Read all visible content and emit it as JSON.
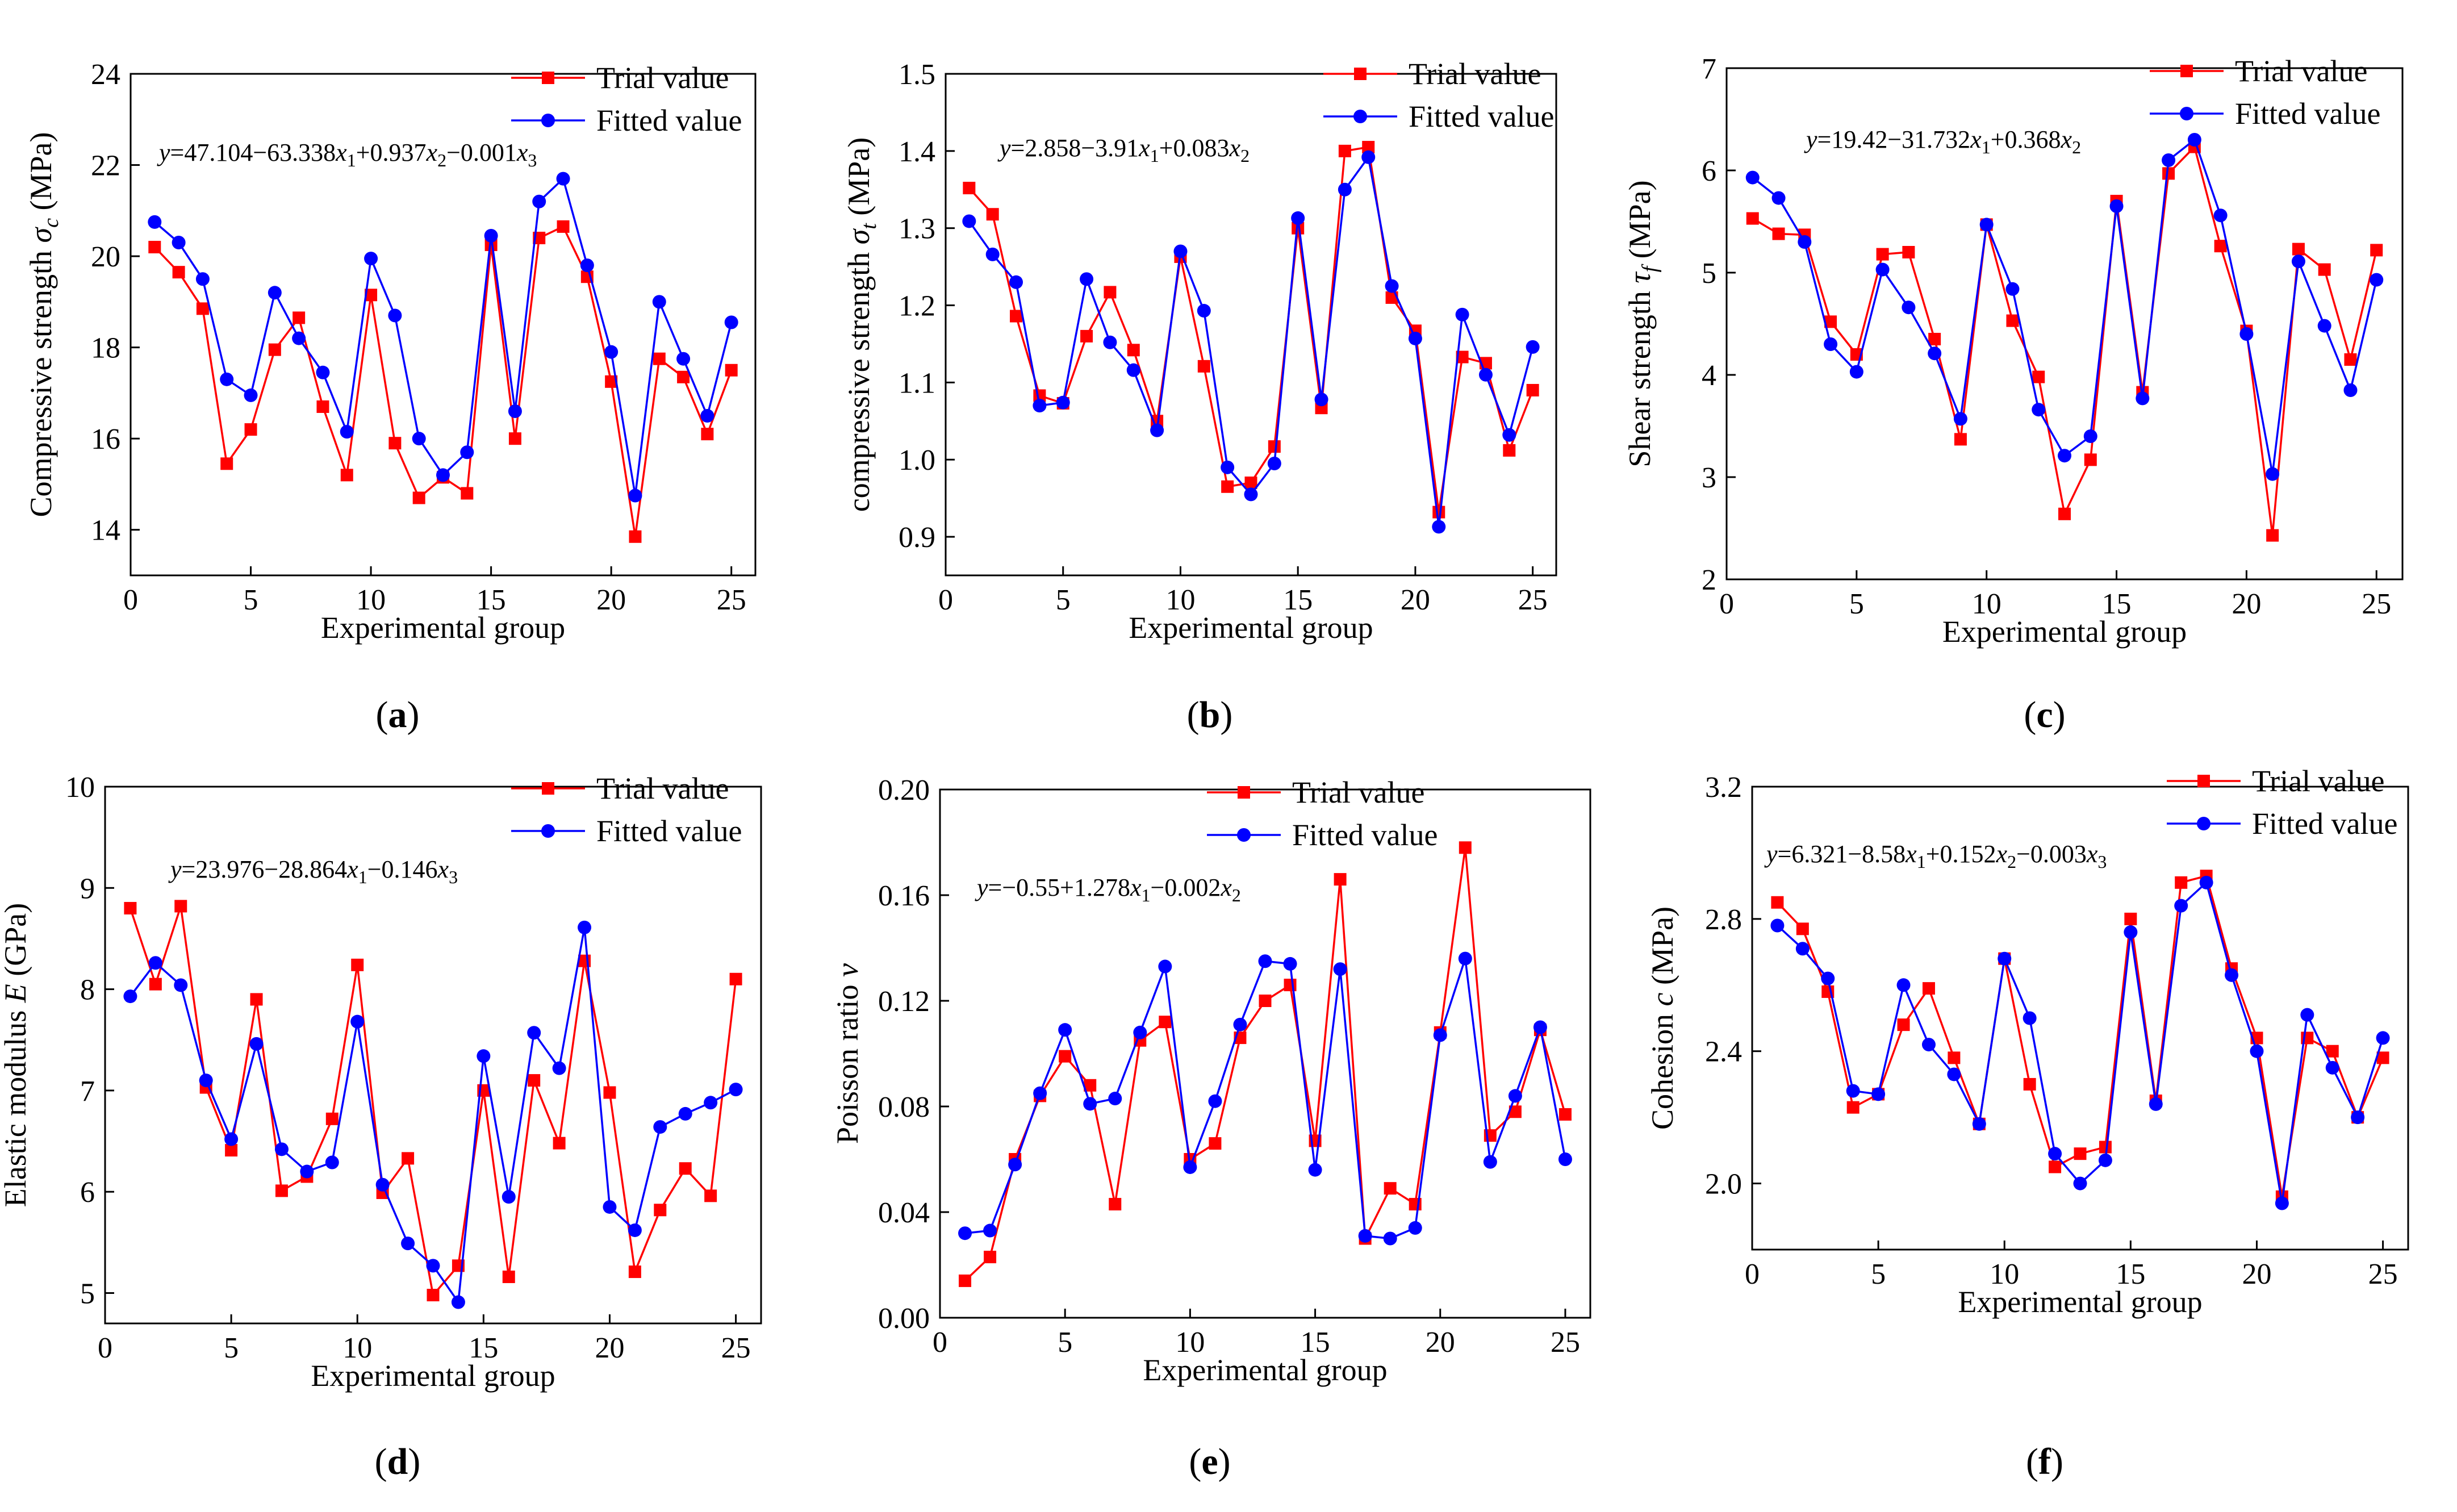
{
  "legend_labels": {
    "trial": "Trial value",
    "fitted": "Fitted value"
  },
  "colors": {
    "trial": "#ff0000",
    "fitted": "#0000ff"
  },
  "chart_data": [
    {
      "type": "line",
      "panel_label": "(a)",
      "ylabel": "Compressive strength σc (MPa)",
      "ylabel_parts": {
        "base": "Compressive strength ",
        "sym": "σ",
        "sub": "c",
        "tail": " (MPa)"
      },
      "xlabel": "Experimental group",
      "equation": "y=47.104−63.338x1+0.937x2−0.001x3",
      "equation_parts": [
        {
          "t": "y",
          "i": true
        },
        {
          "t": "=47.104−63.338"
        },
        {
          "t": "x",
          "i": true
        },
        {
          "t": "1",
          "sub": true
        },
        {
          "t": "+0.937"
        },
        {
          "t": "x",
          "i": true
        },
        {
          "t": "2",
          "sub": true
        },
        {
          "t": "−0.001"
        },
        {
          "t": "x",
          "i": true
        },
        {
          "t": "3",
          "sub": true
        }
      ],
      "xlim": [
        0,
        26
      ],
      "ylim": [
        13,
        24
      ],
      "xticks": [
        0,
        5,
        10,
        15,
        20,
        25
      ],
      "yticks": [
        14,
        16,
        18,
        20,
        22,
        24
      ],
      "ytick_decimals": 0,
      "x": [
        1,
        2,
        3,
        4,
        5,
        6,
        7,
        8,
        9,
        10,
        11,
        12,
        13,
        14,
        15,
        16,
        17,
        18,
        19,
        20,
        21,
        22,
        23,
        24,
        25
      ],
      "legend_position": "top-right",
      "series": [
        {
          "name": "Trial value",
          "values": [
            20.2,
            19.65,
            18.85,
            15.45,
            16.2,
            17.95,
            18.65,
            16.7,
            15.2,
            19.15,
            15.9,
            14.7,
            15.15,
            14.8,
            20.25,
            16.0,
            20.4,
            20.65,
            19.55,
            17.25,
            13.85,
            17.75,
            17.35,
            16.1,
            17.5
          ]
        },
        {
          "name": "Fitted value",
          "values": [
            20.75,
            20.3,
            19.5,
            17.3,
            16.95,
            19.2,
            18.2,
            17.45,
            16.15,
            19.95,
            18.7,
            16.0,
            15.2,
            15.7,
            20.45,
            16.6,
            21.2,
            21.7,
            19.8,
            17.9,
            14.75,
            19.0,
            17.75,
            16.5,
            18.55
          ]
        }
      ]
    },
    {
      "type": "line",
      "panel_label": "(b)",
      "ylabel": "compressive strength σt (MPa)",
      "ylabel_parts": {
        "base": "compressive strength ",
        "sym": "σ",
        "sub": "t",
        "tail": " (MPa)"
      },
      "xlabel": "Experimental group",
      "equation": "y=2.858−3.91x1+0.083x2",
      "equation_parts": [
        {
          "t": "y",
          "i": true
        },
        {
          "t": "=2.858−3.91"
        },
        {
          "t": "x",
          "i": true
        },
        {
          "t": "1",
          "sub": true
        },
        {
          "t": "+0.083"
        },
        {
          "t": "x",
          "i": true
        },
        {
          "t": "2",
          "sub": true
        }
      ],
      "xlim": [
        0,
        26
      ],
      "ylim": [
        0.85,
        1.5
      ],
      "xticks": [
        0,
        5,
        10,
        15,
        20,
        25
      ],
      "yticks": [
        0.9,
        1.0,
        1.1,
        1.2,
        1.3,
        1.4,
        1.5
      ],
      "ytick_decimals": 1,
      "x": [
        1,
        2,
        3,
        4,
        5,
        6,
        7,
        8,
        9,
        10,
        11,
        12,
        13,
        14,
        15,
        16,
        17,
        18,
        19,
        20,
        21,
        22,
        23,
        24,
        25
      ],
      "legend_position": "top-right",
      "series": [
        {
          "name": "Trial value",
          "values": [
            1.352,
            1.318,
            1.186,
            1.083,
            1.073,
            1.16,
            1.217,
            1.142,
            1.05,
            1.263,
            1.121,
            0.965,
            0.97,
            1.017,
            1.3,
            1.067,
            1.4,
            1.405,
            1.21,
            1.167,
            0.932,
            1.133,
            1.125,
            1.012,
            1.09
          ]
        },
        {
          "name": "Fitted value",
          "values": [
            1.309,
            1.266,
            1.23,
            1.07,
            1.074,
            1.234,
            1.152,
            1.116,
            1.038,
            1.27,
            1.193,
            0.99,
            0.955,
            0.995,
            1.313,
            1.078,
            1.35,
            1.392,
            1.225,
            1.157,
            0.913,
            1.188,
            1.11,
            1.032,
            1.146
          ]
        }
      ]
    },
    {
      "type": "line",
      "panel_label": "(c)",
      "ylabel": "Shear strength τf (MPa)",
      "ylabel_parts": {
        "base": "Shear strength ",
        "sym": "τ",
        "sub": "f",
        "tail": " (MPa)"
      },
      "xlabel": "Experimental group",
      "equation": "y=19.42−31.732x1+0.368x2",
      "equation_parts": [
        {
          "t": "y",
          "i": true
        },
        {
          "t": "=19.42−31.732"
        },
        {
          "t": "x",
          "i": true
        },
        {
          "t": "1",
          "sub": true
        },
        {
          "t": "+0.368"
        },
        {
          "t": "x",
          "i": true
        },
        {
          "t": "2",
          "sub": true
        }
      ],
      "xlim": [
        0,
        26
      ],
      "ylim": [
        2,
        7
      ],
      "xticks": [
        0,
        5,
        10,
        15,
        20,
        25
      ],
      "yticks": [
        2,
        3,
        4,
        5,
        6,
        7
      ],
      "ytick_decimals": 0,
      "x": [
        1,
        2,
        3,
        4,
        5,
        6,
        7,
        8,
        9,
        10,
        11,
        12,
        13,
        14,
        15,
        16,
        17,
        18,
        19,
        20,
        21,
        22,
        23,
        24,
        25
      ],
      "legend_position": "top-right",
      "series": [
        {
          "name": "Trial value",
          "values": [
            5.53,
            5.38,
            5.37,
            4.52,
            4.2,
            5.18,
            5.2,
            4.35,
            3.37,
            5.47,
            4.53,
            3.98,
            2.64,
            3.17,
            5.7,
            3.83,
            5.97,
            6.23,
            5.26,
            4.43,
            2.43,
            5.23,
            5.03,
            4.15,
            5.22
          ]
        },
        {
          "name": "Fitted value",
          "values": [
            5.93,
            5.73,
            5.3,
            4.3,
            4.03,
            5.03,
            4.66,
            4.21,
            3.57,
            5.47,
            4.84,
            3.66,
            3.21,
            3.4,
            5.65,
            3.77,
            6.1,
            6.3,
            5.56,
            4.4,
            3.03,
            5.11,
            4.48,
            3.85,
            4.93
          ]
        }
      ]
    },
    {
      "type": "line",
      "panel_label": "(d)",
      "ylabel": "Elastic modulus E (GPa)",
      "ylabel_parts": {
        "base": "Elastic modulus ",
        "sym": "E",
        "sub": "",
        "tail": " (GPa)"
      },
      "xlabel": "Experimental group",
      "equation": "y=23.976−28.864x1−0.146x3",
      "equation_parts": [
        {
          "t": "y",
          "i": true
        },
        {
          "t": "=23.976−28.864"
        },
        {
          "t": "x",
          "i": true
        },
        {
          "t": "1",
          "sub": true
        },
        {
          "t": "−0.146"
        },
        {
          "t": "x",
          "i": true
        },
        {
          "t": "3",
          "sub": true
        }
      ],
      "xlim": [
        0,
        26
      ],
      "ylim": [
        4.7,
        10
      ],
      "xticks": [
        0,
        5,
        10,
        15,
        20,
        25
      ],
      "yticks": [
        5,
        6,
        7,
        8,
        9,
        10
      ],
      "ytick_decimals": 0,
      "x": [
        1,
        2,
        3,
        4,
        5,
        6,
        7,
        8,
        9,
        10,
        11,
        12,
        13,
        14,
        15,
        16,
        17,
        18,
        19,
        20,
        21,
        22,
        23,
        24,
        25
      ],
      "legend_position": "top-right",
      "series": [
        {
          "name": "Trial value",
          "values": [
            8.8,
            8.05,
            8.82,
            7.03,
            6.41,
            7.9,
            6.01,
            6.15,
            6.72,
            8.24,
            5.99,
            6.33,
            4.98,
            5.27,
            7.0,
            5.16,
            7.1,
            6.48,
            8.28,
            6.98,
            5.21,
            5.82,
            6.23,
            5.96,
            8.1
          ]
        },
        {
          "name": "Fitted value",
          "values": [
            7.93,
            8.26,
            8.04,
            7.1,
            6.52,
            7.46,
            6.42,
            6.2,
            6.29,
            7.68,
            6.07,
            5.49,
            5.27,
            4.91,
            7.34,
            5.95,
            7.57,
            7.22,
            8.61,
            5.85,
            5.62,
            6.64,
            6.77,
            6.88,
            7.01
          ]
        }
      ]
    },
    {
      "type": "line",
      "panel_label": "(e)",
      "ylabel": "Poisson ratio ν",
      "ylabel_parts": {
        "base": "Poisson ratio ",
        "sym": "ν",
        "sub": "",
        "tail": ""
      },
      "xlabel": "Experimental group",
      "equation": "y=−0.55+1.278x1−0.002x2",
      "equation_parts": [
        {
          "t": "y",
          "i": true
        },
        {
          "t": "=−0.55+1.278"
        },
        {
          "t": "x",
          "i": true
        },
        {
          "t": "1",
          "sub": true
        },
        {
          "t": "−0.002"
        },
        {
          "t": "x",
          "i": true
        },
        {
          "t": "2",
          "sub": true
        }
      ],
      "xlim": [
        0,
        26
      ],
      "ylim": [
        0.0,
        0.2
      ],
      "xticks": [
        0,
        5,
        10,
        15,
        20,
        25
      ],
      "yticks": [
        0.0,
        0.04,
        0.08,
        0.12,
        0.16,
        0.2
      ],
      "ytick_decimals": 2,
      "x": [
        1,
        2,
        3,
        4,
        5,
        6,
        7,
        8,
        9,
        10,
        11,
        12,
        13,
        14,
        15,
        16,
        17,
        18,
        19,
        20,
        21,
        22,
        23,
        24,
        25
      ],
      "legend_position": "top-right",
      "series": [
        {
          "name": "Trial value",
          "values": [
            0.014,
            0.023,
            0.06,
            0.084,
            0.099,
            0.088,
            0.043,
            0.105,
            0.112,
            0.06,
            0.066,
            0.106,
            0.12,
            0.126,
            0.067,
            0.166,
            0.03,
            0.049,
            0.043,
            0.108,
            0.178,
            0.069,
            0.078,
            0.109,
            0.077
          ]
        },
        {
          "name": "Fitted value",
          "values": [
            0.032,
            0.033,
            0.058,
            0.085,
            0.109,
            0.081,
            0.083,
            0.108,
            0.133,
            0.057,
            0.082,
            0.111,
            0.135,
            0.134,
            0.056,
            0.132,
            0.031,
            0.03,
            0.034,
            0.107,
            0.136,
            0.059,
            0.084,
            0.11,
            0.06
          ]
        }
      ]
    },
    {
      "type": "line",
      "panel_label": "(f)",
      "ylabel": "Cohesion c (MPa)",
      "ylabel_parts": {
        "base": "Cohesion ",
        "sym": "c",
        "sub": "",
        "tail": " (MPa)"
      },
      "xlabel": "Experimental group",
      "equation": "y=6.321−8.58x1+0.152x2−0.003x3",
      "equation_parts": [
        {
          "t": "y",
          "i": true
        },
        {
          "t": "=6.321−8.58"
        },
        {
          "t": "x",
          "i": true
        },
        {
          "t": "1",
          "sub": true
        },
        {
          "t": "+0.152"
        },
        {
          "t": "x",
          "i": true
        },
        {
          "t": "2",
          "sub": true
        },
        {
          "t": "−0.003"
        },
        {
          "t": "x",
          "i": true
        },
        {
          "t": "3",
          "sub": true
        }
      ],
      "xlim": [
        0,
        26
      ],
      "ylim": [
        1.8,
        3.2
      ],
      "xticks": [
        0,
        5,
        10,
        15,
        20,
        25
      ],
      "yticks": [
        2.0,
        2.4,
        2.8,
        3.2
      ],
      "ytick_decimals": 1,
      "x": [
        1,
        2,
        3,
        4,
        5,
        6,
        7,
        8,
        9,
        10,
        11,
        12,
        13,
        14,
        15,
        16,
        17,
        18,
        19,
        20,
        21,
        22,
        23,
        24,
        25
      ],
      "legend_position": "top-right",
      "series": [
        {
          "name": "Trial value",
          "values": [
            2.85,
            2.77,
            2.58,
            2.23,
            2.27,
            2.48,
            2.59,
            2.38,
            2.18,
            2.68,
            2.3,
            2.05,
            2.09,
            2.11,
            2.8,
            2.25,
            2.91,
            2.93,
            2.65,
            2.44,
            1.96,
            2.44,
            2.4,
            2.2,
            2.38
          ]
        },
        {
          "name": "Fitted value",
          "values": [
            2.78,
            2.71,
            2.62,
            2.28,
            2.27,
            2.6,
            2.42,
            2.33,
            2.18,
            2.68,
            2.5,
            2.09,
            2.0,
            2.07,
            2.76,
            2.24,
            2.84,
            2.91,
            2.63,
            2.4,
            1.94,
            2.51,
            2.35,
            2.2,
            2.44
          ]
        }
      ]
    }
  ]
}
